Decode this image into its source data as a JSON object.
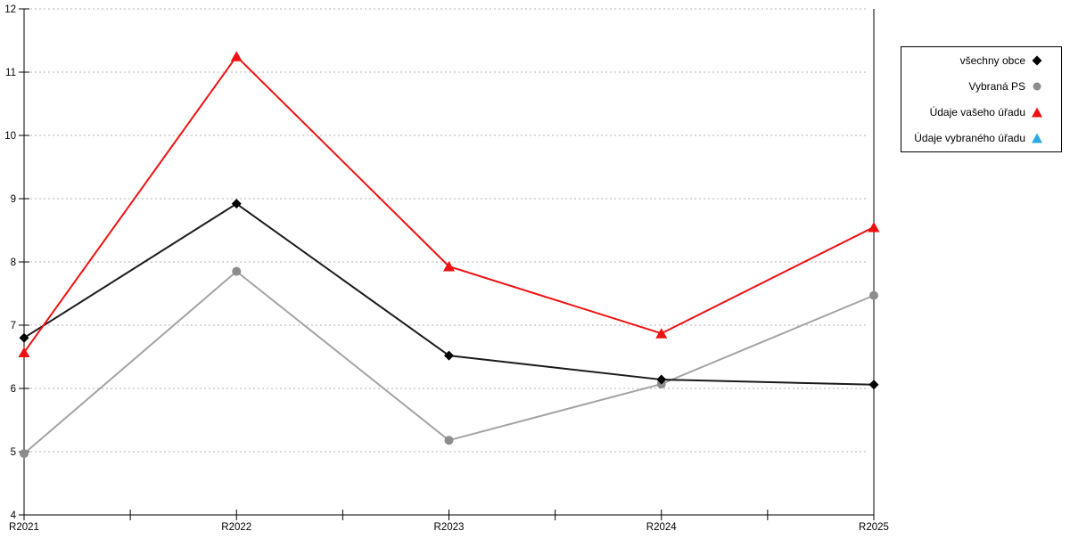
{
  "page": {
    "background": "#ffffff"
  },
  "chart_data": {
    "type": "line",
    "title": "",
    "xlabel": "",
    "ylabel": "",
    "categories": [
      "R2021",
      "R2022",
      "R2023",
      "R2024",
      "R2025"
    ],
    "ylim": [
      4,
      12
    ],
    "y_ticks": [
      4,
      5,
      6,
      7,
      8,
      9,
      10,
      11,
      12
    ],
    "grid": {
      "horizontal": true,
      "style": "dotted",
      "color": "#b3b3b3"
    },
    "axis_color": "#000000",
    "legend_position": "top-right",
    "z_order": [
      1,
      0,
      2,
      3
    ],
    "series": [
      {
        "key": "vsechny-obce",
        "name": "všechny obce",
        "marker": "diamond",
        "color": "#000000",
        "line_color": "#1a1a1a",
        "values": [
          6.8,
          8.92,
          6.52,
          6.14,
          6.06
        ]
      },
      {
        "key": "vybrana-ps",
        "name": "Vybraná PS",
        "marker": "circle",
        "color": "#8c8c8c",
        "line_color": "#a3a3a3",
        "values": [
          4.97,
          7.85,
          5.18,
          6.07,
          7.47
        ]
      },
      {
        "key": "udaje-vaseho-uradu",
        "name": "Údaje vašeho úřadu",
        "marker": "triangle",
        "color": "#ee1111",
        "line_color": "#ee1111",
        "values": [
          6.57,
          11.25,
          7.93,
          6.87,
          8.55
        ]
      },
      {
        "key": "udaje-vybraneho-uradu",
        "name": "Údaje vybraného úřadu",
        "marker": "triangle",
        "color": "#29abe2",
        "line_color": "#29abe2",
        "values": []
      }
    ]
  }
}
